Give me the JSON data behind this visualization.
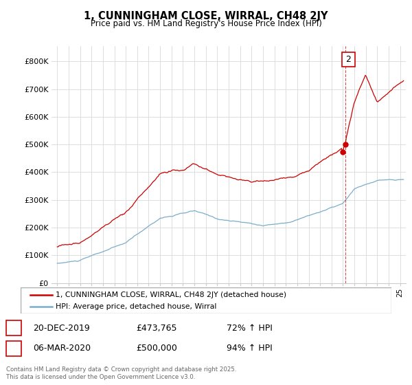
{
  "title": "1, CUNNINGHAM CLOSE, WIRRAL, CH48 2JY",
  "subtitle": "Price paid vs. HM Land Registry's House Price Index (HPI)",
  "legend_label_red": "1, CUNNINGHAM CLOSE, WIRRAL, CH48 2JY (detached house)",
  "legend_label_blue": "HPI: Average price, detached house, Wirral",
  "ylabel_ticks": [
    "£0",
    "£100K",
    "£200K",
    "£300K",
    "£400K",
    "£500K",
    "£600K",
    "£700K",
    "£800K"
  ],
  "ylabel_values": [
    0,
    100000,
    200000,
    300000,
    400000,
    500000,
    600000,
    700000,
    800000
  ],
  "annotation1": {
    "label": "1",
    "date": "20-DEC-2019",
    "price": "£473,765",
    "hpi": "72% ↑ HPI"
  },
  "annotation2": {
    "label": "2",
    "date": "06-MAR-2020",
    "price": "£500,000",
    "hpi": "94% ↑ HPI"
  },
  "footer": "Contains HM Land Registry data © Crown copyright and database right 2025.\nThis data is licensed under the Open Government Licence v3.0.",
  "red_color": "#cc0000",
  "blue_color": "#7aadcc",
  "background_color": "#ffffff",
  "grid_color": "#dddddd"
}
